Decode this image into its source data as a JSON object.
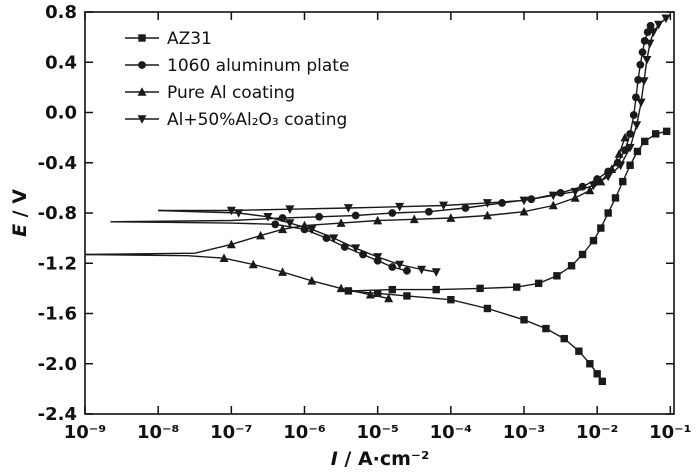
{
  "chart_data": {
    "type": "line",
    "title": "",
    "xlabel": "I / A·cm⁻²",
    "ylabel": "E / V",
    "xlabel_var": "I",
    "xlabel_rest": " / A·cm⁻²",
    "ylabel_var": "E",
    "ylabel_rest": " / V",
    "x_scale": "log",
    "x_tick_exponents": [
      -9,
      -8,
      -7,
      -6,
      -5,
      -4,
      -3,
      -2,
      -1
    ],
    "y_ticks": [
      0.8,
      0.4,
      0.0,
      -0.4,
      -0.8,
      -1.2,
      -1.6,
      -2.0,
      -2.4
    ],
    "xlim_log10": [
      -9,
      -0.95
    ],
    "ylim": [
      -2.4,
      0.8
    ],
    "grid": false,
    "legend_position": "top-left",
    "axis_color": "#111111",
    "curve_color": "#1a1a1a",
    "series": [
      {
        "id": "az31",
        "label": "AZ31",
        "marker": "square",
        "ecorr_v": -1.42,
        "branches": [
          {
            "name": "cathodic",
            "mskip": 0,
            "points": [
              [
                -5.4,
                -1.42
              ],
              [
                -5.0,
                -1.44
              ],
              [
                -4.6,
                -1.46
              ],
              [
                -4.0,
                -1.49
              ],
              [
                -3.5,
                -1.56
              ],
              [
                -3.0,
                -1.65
              ],
              [
                -2.7,
                -1.72
              ],
              [
                -2.45,
                -1.8
              ],
              [
                -2.25,
                -1.9
              ],
              [
                -2.1,
                -2.0
              ],
              [
                -2.0,
                -2.08
              ],
              [
                -1.93,
                -2.14
              ]
            ]
          },
          {
            "name": "anodic",
            "mskip": 1,
            "points": [
              [
                -5.4,
                -1.42
              ],
              [
                -4.8,
                -1.41
              ],
              [
                -4.2,
                -1.41
              ],
              [
                -3.6,
                -1.4
              ],
              [
                -3.1,
                -1.39
              ],
              [
                -2.8,
                -1.36
              ],
              [
                -2.55,
                -1.3
              ],
              [
                -2.35,
                -1.22
              ],
              [
                -2.2,
                -1.13
              ],
              [
                -2.05,
                -1.02
              ],
              [
                -1.95,
                -0.92
              ],
              [
                -1.85,
                -0.8
              ],
              [
                -1.75,
                -0.68
              ],
              [
                -1.65,
                -0.55
              ],
              [
                -1.55,
                -0.42
              ],
              [
                -1.45,
                -0.31
              ],
              [
                -1.35,
                -0.23
              ],
              [
                -1.2,
                -0.17
              ],
              [
                -1.05,
                -0.15
              ]
            ]
          }
        ]
      },
      {
        "id": "al1060",
        "label": "1060 aluminum plate",
        "marker": "circle",
        "ecorr_v": -0.87,
        "branches": [
          {
            "name": "cathodic",
            "mskip": 2,
            "points": [
              [
                -8.65,
                -0.87
              ],
              [
                -7.0,
                -0.88
              ],
              [
                -6.4,
                -0.89
              ],
              [
                -6.0,
                -0.93
              ],
              [
                -5.7,
                -1.0
              ],
              [
                -5.45,
                -1.07
              ],
              [
                -5.2,
                -1.13
              ],
              [
                -5.0,
                -1.18
              ],
              [
                -4.8,
                -1.23
              ],
              [
                -4.6,
                -1.26
              ]
            ]
          },
          {
            "name": "anodic",
            "mskip": 2,
            "points": [
              [
                -8.65,
                -0.87
              ],
              [
                -7.0,
                -0.86
              ],
              [
                -6.3,
                -0.84
              ],
              [
                -5.8,
                -0.83
              ],
              [
                -5.3,
                -0.82
              ],
              [
                -4.8,
                -0.8
              ],
              [
                -4.3,
                -0.79
              ],
              [
                -3.8,
                -0.76
              ],
              [
                -3.3,
                -0.72
              ],
              [
                -2.9,
                -0.69
              ],
              [
                -2.5,
                -0.64
              ],
              [
                -2.2,
                -0.59
              ],
              [
                -2.0,
                -0.53
              ],
              [
                -1.85,
                -0.47
              ],
              [
                -1.72,
                -0.4
              ],
              [
                -1.62,
                -0.3
              ],
              [
                -1.55,
                -0.17
              ],
              [
                -1.5,
                -0.02
              ],
              [
                -1.47,
                0.12
              ],
              [
                -1.44,
                0.26
              ],
              [
                -1.41,
                0.38
              ],
              [
                -1.38,
                0.48
              ],
              [
                -1.35,
                0.57
              ],
              [
                -1.31,
                0.64
              ],
              [
                -1.27,
                0.69
              ]
            ]
          }
        ]
      },
      {
        "id": "pure-al",
        "label": "Pure Al coating",
        "marker": "triangle-up",
        "ecorr_v": -1.13,
        "branches": [
          {
            "name": "cathodic",
            "mskip": 2,
            "points": [
              [
                -9.0,
                -1.13
              ],
              [
                -7.6,
                -1.14
              ],
              [
                -7.1,
                -1.16
              ],
              [
                -6.7,
                -1.21
              ],
              [
                -6.3,
                -1.27
              ],
              [
                -5.9,
                -1.34
              ],
              [
                -5.5,
                -1.4
              ],
              [
                -5.1,
                -1.45
              ],
              [
                -4.85,
                -1.48
              ]
            ]
          },
          {
            "name": "anodic",
            "mskip": 2,
            "points": [
              [
                -9.0,
                -1.13
              ],
              [
                -7.5,
                -1.12
              ],
              [
                -7.0,
                -1.05
              ],
              [
                -6.6,
                -0.98
              ],
              [
                -6.3,
                -0.93
              ],
              [
                -6.0,
                -0.9
              ],
              [
                -5.5,
                -0.88
              ],
              [
                -5.0,
                -0.86
              ],
              [
                -4.5,
                -0.85
              ],
              [
                -4.0,
                -0.84
              ],
              [
                -3.5,
                -0.82
              ],
              [
                -3.0,
                -0.79
              ],
              [
                -2.6,
                -0.74
              ],
              [
                -2.3,
                -0.68
              ],
              [
                -2.1,
                -0.62
              ],
              [
                -1.95,
                -0.55
              ],
              [
                -1.8,
                -0.45
              ],
              [
                -1.7,
                -0.33
              ],
              [
                -1.62,
                -0.2
              ]
            ]
          }
        ]
      },
      {
        "id": "al-al2o3",
        "label": "Al+50%Al₂O₃ coating",
        "marker": "triangle-down",
        "ecorr_v": -0.78,
        "branches": [
          {
            "name": "cathodic",
            "mskip": 1,
            "points": [
              [
                -8.0,
                -0.78
              ],
              [
                -6.9,
                -0.8
              ],
              [
                -6.5,
                -0.83
              ],
              [
                -6.2,
                -0.88
              ],
              [
                -5.9,
                -0.93
              ],
              [
                -5.6,
                -1.0
              ],
              [
                -5.3,
                -1.08
              ],
              [
                -5.0,
                -1.15
              ],
              [
                -4.7,
                -1.21
              ],
              [
                -4.4,
                -1.25
              ],
              [
                -4.2,
                -1.27
              ]
            ]
          },
          {
            "name": "anodic",
            "mskip": 1,
            "points": [
              [
                -8.0,
                -0.78
              ],
              [
                -7.0,
                -0.78
              ],
              [
                -6.2,
                -0.77
              ],
              [
                -5.4,
                -0.76
              ],
              [
                -4.7,
                -0.75
              ],
              [
                -4.1,
                -0.74
              ],
              [
                -3.5,
                -0.72
              ],
              [
                -3.0,
                -0.7
              ],
              [
                -2.6,
                -0.66
              ],
              [
                -2.3,
                -0.63
              ],
              [
                -2.05,
                -0.58
              ],
              [
                -1.85,
                -0.51
              ],
              [
                -1.68,
                -0.42
              ],
              [
                -1.55,
                -0.28
              ],
              [
                -1.46,
                -0.1
              ],
              [
                -1.4,
                0.08
              ],
              [
                -1.36,
                0.25
              ],
              [
                -1.32,
                0.42
              ],
              [
                -1.28,
                0.55
              ],
              [
                -1.23,
                0.64
              ],
              [
                -1.16,
                0.7
              ],
              [
                -1.06,
                0.75
              ]
            ]
          }
        ]
      }
    ]
  }
}
